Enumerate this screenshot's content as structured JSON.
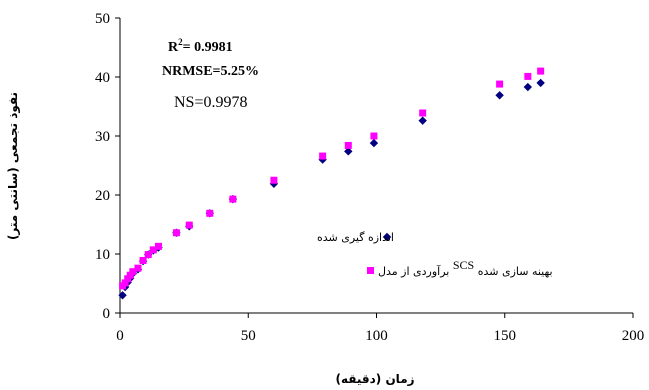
{
  "chart_data": {
    "type": "scatter",
    "xlabel": "زمان (دقیقه)",
    "ylabel": "نفوذ تجمعی (سانتی متر)",
    "xlim": [
      0,
      200
    ],
    "ylim": [
      0,
      50
    ],
    "xticks": [
      "0",
      "50",
      "100",
      "150",
      "200"
    ],
    "yticks": [
      "0",
      "10",
      "20",
      "30",
      "40",
      "50"
    ],
    "grid": false,
    "legend_position": "right, inside plot",
    "annotations": {
      "r2_prefix": "R",
      "r2_sup": "2",
      "r2_value": "= 0.9981",
      "nrmse": "NRMSE=5.25%",
      "ns": "NS=0.9978"
    },
    "series": [
      {
        "name": "اندازه گیری شده",
        "marker": "diamond",
        "color": "#000080",
        "x": [
          1,
          2,
          3,
          4,
          5,
          7,
          9,
          11,
          13,
          15,
          22,
          27,
          35,
          44,
          60,
          79,
          89,
          99,
          118,
          148,
          159,
          164
        ],
        "y": [
          3.0,
          4.4,
          5.2,
          5.9,
          6.7,
          7.4,
          8.8,
          9.9,
          10.6,
          11.1,
          13.6,
          14.7,
          16.9,
          19.3,
          21.9,
          26.0,
          27.4,
          28.8,
          32.6,
          36.9,
          38.3,
          39.0
        ]
      },
      {
        "name_prefix": "برآوردی از مدل ",
        "name_mid": "SCS",
        "name_suffix": " بهینه سازی شده",
        "marker": "square",
        "color": "#ff00ff",
        "x": [
          1,
          2,
          3,
          4,
          5,
          7,
          9,
          11,
          13,
          15,
          22,
          27,
          35,
          44,
          60,
          79,
          89,
          99,
          118,
          148,
          159,
          164
        ],
        "y": [
          4.6,
          5.1,
          5.8,
          6.4,
          7.0,
          7.6,
          8.9,
          9.9,
          10.7,
          11.3,
          13.6,
          14.9,
          16.9,
          19.3,
          22.5,
          26.6,
          28.4,
          30.0,
          33.9,
          38.8,
          40.1,
          41.0
        ]
      }
    ]
  }
}
